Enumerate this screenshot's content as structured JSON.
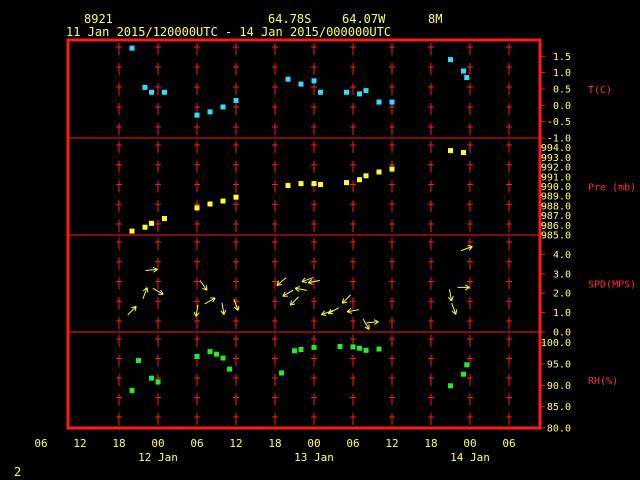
{
  "header": {
    "station": "8921",
    "lat": "64.78S",
    "lon": "64.07W",
    "height": "8M",
    "period": "11 Jan 2015/120000UTC - 14 Jan 2015/000000UTC"
  },
  "footer": {
    "page_number": "2"
  },
  "colors": {
    "frame": "#ff1a1a",
    "text": "#ffff66",
    "temp": "#33ddff",
    "pressure": "#ffff33",
    "wind": "#ffff33",
    "rh": "#22ee22"
  },
  "chart_data": {
    "type": "scatter",
    "x_axis": {
      "range_hours": [
        0,
        72
      ],
      "tick_labels": [
        "06",
        "12",
        "18",
        "00",
        "06",
        "12",
        "18",
        "00",
        "06",
        "12",
        "18",
        "00",
        "06"
      ],
      "tick_hours": [
        -6,
        0,
        6,
        12,
        18,
        24,
        30,
        36,
        42,
        48,
        54,
        60,
        66
      ],
      "date_labels": [
        {
          "label": "12 Jan",
          "hour": 12
        },
        {
          "label": "13 Jan",
          "hour": 36
        },
        {
          "label": "14 Jan",
          "hour": 60
        }
      ]
    },
    "panels": [
      {
        "name": "temp",
        "ylabel": "T(C)",
        "ylim": [
          -1.0,
          2.0
        ],
        "ticks": [
          "-1.0",
          "-0.5",
          "0.0",
          "0.5",
          "1.0",
          "1.5"
        ],
        "points": [
          [
            8,
            1.75
          ],
          [
            10,
            0.55
          ],
          [
            11,
            0.4
          ],
          [
            13,
            0.4
          ],
          [
            18,
            -0.3
          ],
          [
            20,
            -0.2
          ],
          [
            22,
            -0.05
          ],
          [
            24,
            0.15
          ],
          [
            32,
            0.8
          ],
          [
            34,
            0.65
          ],
          [
            36,
            0.75
          ],
          [
            37,
            0.4
          ],
          [
            41,
            0.4
          ],
          [
            43,
            0.35
          ],
          [
            44,
            0.45
          ],
          [
            46,
            0.1
          ],
          [
            48,
            0.1
          ],
          [
            57,
            1.4
          ],
          [
            59,
            1.05
          ],
          [
            59.5,
            0.85
          ]
        ]
      },
      {
        "name": "pressure",
        "ylabel": "Pre (mb)",
        "ylim": [
          985.0,
          995.0
        ],
        "ticks": [
          "985.0",
          "986.0",
          "987.0",
          "988.0",
          "989.0",
          "990.0",
          "991.0",
          "992.0",
          "993.0",
          "994.0"
        ],
        "points": [
          [
            8,
            985.4
          ],
          [
            10,
            985.8
          ],
          [
            11,
            986.2
          ],
          [
            13,
            986.7
          ],
          [
            18,
            987.8
          ],
          [
            20,
            988.2
          ],
          [
            22,
            988.5
          ],
          [
            24,
            988.9
          ],
          [
            32,
            990.1
          ],
          [
            34,
            990.3
          ],
          [
            36,
            990.3
          ],
          [
            37,
            990.2
          ],
          [
            41,
            990.4
          ],
          [
            43,
            990.7
          ],
          [
            44,
            991.1
          ],
          [
            46,
            991.5
          ],
          [
            48,
            991.8
          ],
          [
            57,
            993.7
          ],
          [
            59,
            993.5
          ]
        ]
      },
      {
        "name": "wind",
        "ylabel": "SPD(MPS)",
        "ylim": [
          0.0,
          5.0
        ],
        "ticks": [
          "0.0",
          "1.0",
          "2.0",
          "3.0",
          "4.0"
        ],
        "points": [
          [
            8,
            1.1,
            45
          ],
          [
            10,
            2.0,
            70
          ],
          [
            11,
            3.2,
            5
          ],
          [
            12,
            2.1,
            -30
          ],
          [
            18,
            1.1,
            -100
          ],
          [
            19,
            2.4,
            -55
          ],
          [
            20,
            1.6,
            30
          ],
          [
            22,
            1.2,
            -80
          ],
          [
            24,
            1.4,
            -70
          ],
          [
            31,
            2.6,
            -140
          ],
          [
            32,
            2.0,
            -150
          ],
          [
            33,
            1.6,
            -135
          ],
          [
            34,
            2.2,
            170
          ],
          [
            35,
            2.7,
            -160
          ],
          [
            36,
            2.6,
            -170
          ],
          [
            38,
            1.0,
            -160
          ],
          [
            39,
            1.1,
            -150
          ],
          [
            41,
            1.7,
            -135
          ],
          [
            42,
            1.1,
            -170
          ],
          [
            44,
            0.4,
            -60
          ],
          [
            45,
            0.5,
            5
          ],
          [
            57,
            1.9,
            -80
          ],
          [
            57.5,
            1.2,
            -70
          ],
          [
            59,
            2.3,
            0
          ],
          [
            59.5,
            4.3,
            20
          ]
        ]
      },
      {
        "name": "rh",
        "ylabel": "RH(%)",
        "ylim": [
          80.0,
          102.5
        ],
        "ticks": [
          "80.0",
          "85.0",
          "90.0",
          "95.0",
          "100.0"
        ],
        "points": [
          [
            8,
            88.8
          ],
          [
            9,
            95.8
          ],
          [
            11,
            91.7
          ],
          [
            12,
            90.8
          ],
          [
            18,
            96.8
          ],
          [
            20,
            97.9
          ],
          [
            21,
            97.3
          ],
          [
            22,
            96.4
          ],
          [
            23,
            93.8
          ],
          [
            31,
            92.9
          ],
          [
            33,
            98.1
          ],
          [
            34,
            98.4
          ],
          [
            36,
            98.9
          ],
          [
            40,
            99.1
          ],
          [
            42,
            99.0
          ],
          [
            43,
            98.7
          ],
          [
            44,
            98.2
          ],
          [
            46,
            98.5
          ],
          [
            57,
            89.9
          ],
          [
            59,
            92.6
          ],
          [
            59.5,
            94.8
          ]
        ]
      }
    ]
  }
}
